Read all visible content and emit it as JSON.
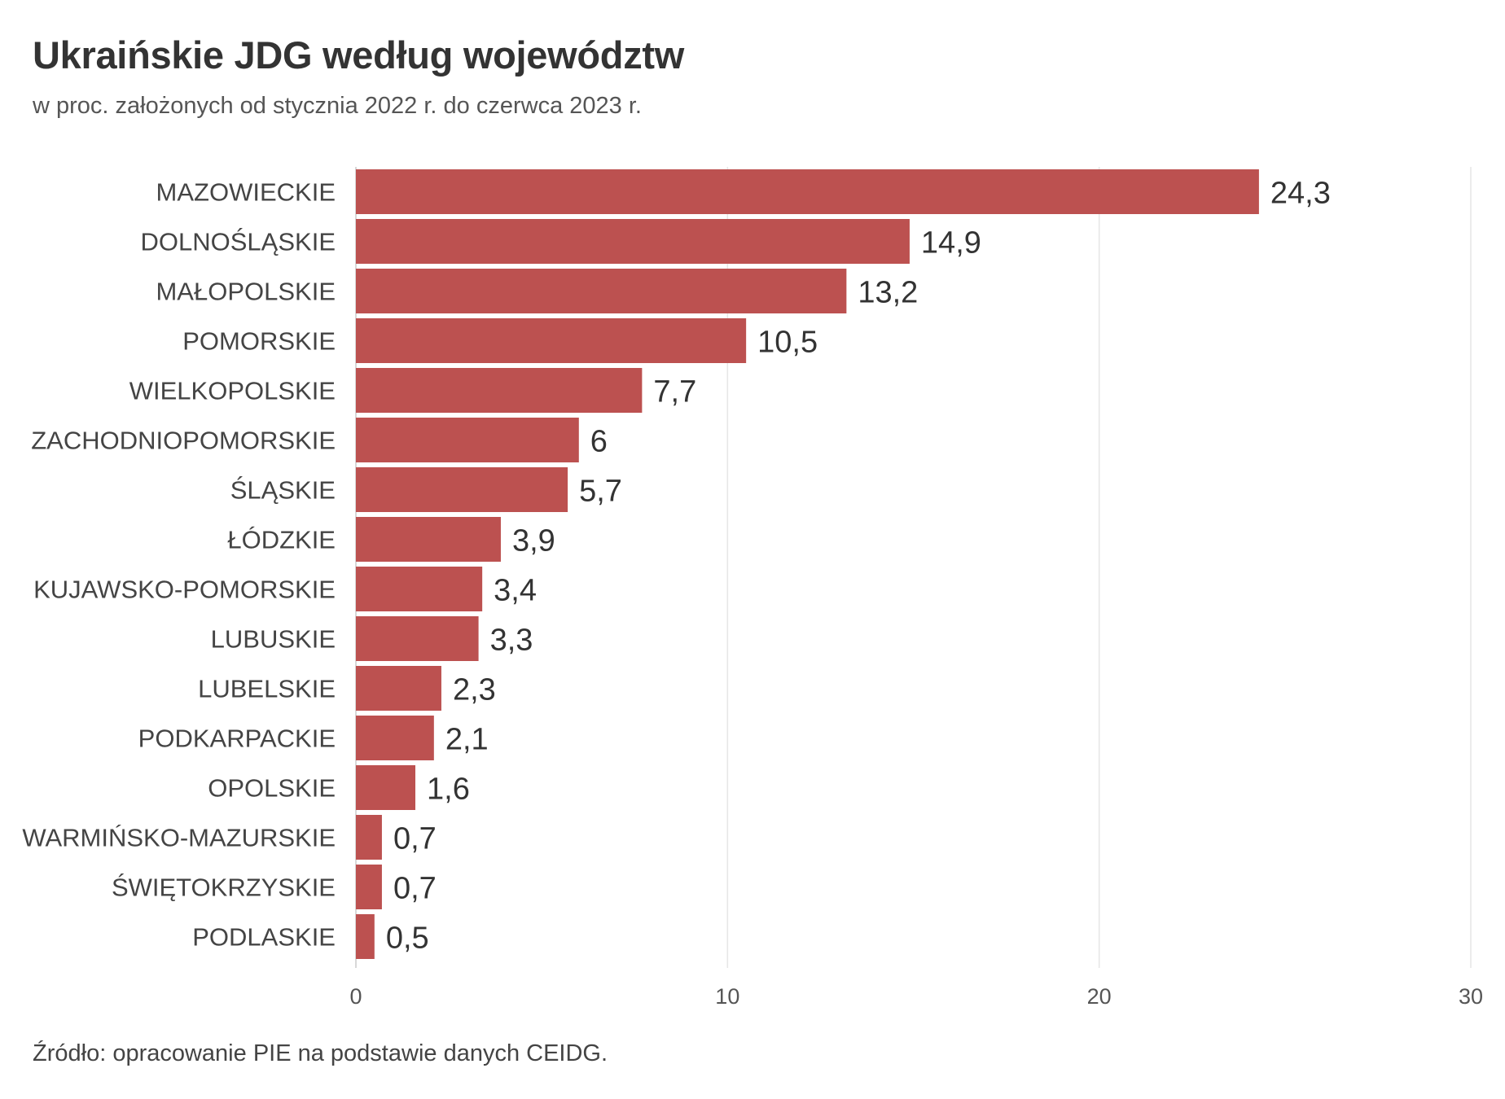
{
  "chart_data": {
    "type": "bar",
    "orientation": "horizontal",
    "title": "Ukraińskie JDG według województw",
    "subtitle": "w proc. założonych od stycznia 2022 r. do czerwca 2023 r.",
    "source": "Źródło: opracowanie PIE na podstawie danych CEIDG.",
    "categories": [
      "MAZOWIECKIE",
      "DOLNOŚLĄSKIE",
      "MAŁOPOLSKIE",
      "POMORSKIE",
      "WIELKOPOLSKIE",
      "ZACHODNIOPOMORSKIE",
      "ŚLĄSKIE",
      "ŁÓDZKIE",
      "KUJAWSKO-POMORSKIE",
      "LUBUSKIE",
      "LUBELSKIE",
      "PODKARPACKIE",
      "OPOLSKIE",
      "WARMIŃSKO-MAZURSKIE",
      "ŚWIĘTOKRZYSKIE",
      "PODLASKIE"
    ],
    "values": [
      24.3,
      14.9,
      13.2,
      10.5,
      7.7,
      6,
      5.7,
      3.9,
      3.4,
      3.3,
      2.3,
      2.1,
      1.6,
      0.7,
      0.7,
      0.5
    ],
    "value_labels": [
      "24,3",
      "14,9",
      "13,2",
      "10,5",
      "7,7",
      "6",
      "5,7",
      "3,9",
      "3,4",
      "3,3",
      "2,3",
      "2,1",
      "1,6",
      "0,7",
      "0,7",
      "0,5"
    ],
    "xlim": [
      0,
      30
    ],
    "xticks": [
      0,
      10,
      20,
      30
    ],
    "grid": true,
    "legend": "none",
    "colors": {
      "bar": "#bc5150",
      "grid": "#e6e6e6"
    }
  }
}
